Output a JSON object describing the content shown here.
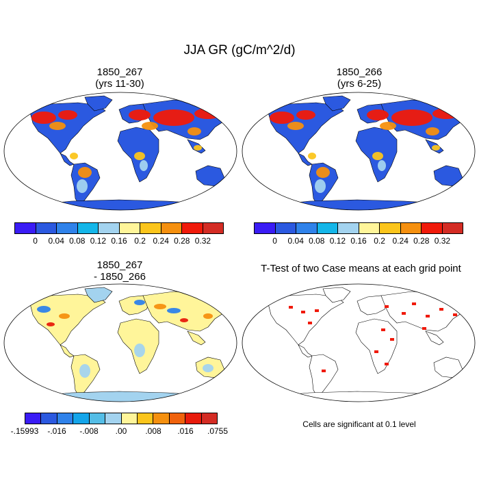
{
  "figure": {
    "title": "JJA GR (gC/m^2/d)",
    "panels": [
      {
        "line1": "1850_267",
        "line2": "(yrs 11-30)"
      },
      {
        "line1": "1850_266",
        "line2": "(yrs 6-25)"
      },
      {
        "line1": "1850_267",
        "line2": "- 1850_266"
      },
      {
        "line1": "T-Test of two Case means at each grid point",
        "line2": ""
      }
    ],
    "colorbar_top": {
      "colors": [
        "#3a1cf5",
        "#2b59e0",
        "#2f82ea",
        "#14b6e9",
        "#a3d3ef",
        "#fff59a",
        "#fbc51c",
        "#f5900f",
        "#f01a0a",
        "#d42c24"
      ],
      "labels": [
        "0",
        "0.04",
        "0.08",
        "0.12",
        "0.16",
        "0.2",
        "0.24",
        "0.28",
        "0.32"
      ]
    },
    "colorbar_diff": {
      "colors": [
        "#3a1cf5",
        "#2b59e0",
        "#2f82ea",
        "#14a5ea",
        "#54bde6",
        "#a3d3ef",
        "#fff59a",
        "#fbc51c",
        "#f5900f",
        "#f0620c",
        "#e81b0b",
        "#d42c24"
      ],
      "labels": [
        "-.15993",
        "-.016",
        "-.008",
        ".00",
        ".008",
        ".016",
        ".0755"
      ]
    },
    "ttest_note": "Cells are significant at 0.1 level"
  }
}
